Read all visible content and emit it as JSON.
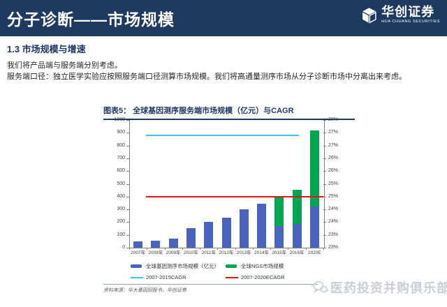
{
  "header": {
    "title": "分子诊断——市场规模",
    "brand": {
      "name": "华创证券",
      "subtitle": "HUA CHUANG SECURITIES"
    }
  },
  "body": {
    "section_heading": "1.3 市场规模与增速",
    "paragraphs": [
      "我们将产品端与服务端分别考虑。",
      "服务端口径：独立医学实验应按照服务端口径测算市场规模。我们将高通量测序市场从分子诊断市场中分离出来考虑。"
    ]
  },
  "figure": {
    "title": "图表5：  全球基因测序服务端市场规模（亿元）与CAGR",
    "source": "资料来源：华大基因招股书，华创证券"
  },
  "watermark": {
    "text": "医药投资并购俱乐部"
  },
  "colors": {
    "header_navy": "#1F3A60",
    "heading_navy": "#1F3864",
    "bar_blue": "#4A63BE",
    "bar_green": "#00A651",
    "line_cyan": "#41C0E8",
    "line_red": "#EE1111",
    "watermark_gray": "#C9CED6"
  },
  "chart_data": {
    "type": "bar",
    "title": "全球基因测序服务端市场规模（亿元）与CAGR",
    "categories": [
      "2007年",
      "2008年",
      "2009年",
      "2010年",
      "2011年",
      "2012年",
      "2013年",
      "2014年",
      "2015年",
      "2016年",
      "2020E"
    ],
    "series": [
      {
        "name": "全球基因测序市场规模（亿元）",
        "type": "bar",
        "color": "#4A63BE",
        "values": [
          50,
          55,
          70,
          155,
          200,
          235,
          300,
          345,
          170,
          185,
          320
        ]
      },
      {
        "name": "全球NGS市场规模",
        "type": "bar",
        "color": "#00A651",
        "values": [
          0,
          0,
          0,
          0,
          0,
          0,
          0,
          0,
          225,
          270,
          600
        ]
      },
      {
        "name": "2007-2015CAGR",
        "type": "line",
        "color": "#41C0E8",
        "value_pct": 27.4,
        "span": [
          0.085,
          0.875
        ]
      },
      {
        "name": "2007-2020ECAGR",
        "type": "line",
        "color": "#EE1111",
        "value_pct": 25.0,
        "span": [
          0.085,
          1.0
        ]
      }
    ],
    "left_axis": {
      "min": 0,
      "max": 1000,
      "step": 100
    },
    "right_axis": {
      "min": 23,
      "max": 28,
      "step": 0.5,
      "format": "truncated integer percent"
    },
    "gridlines": false,
    "legend_position": "bottom"
  }
}
